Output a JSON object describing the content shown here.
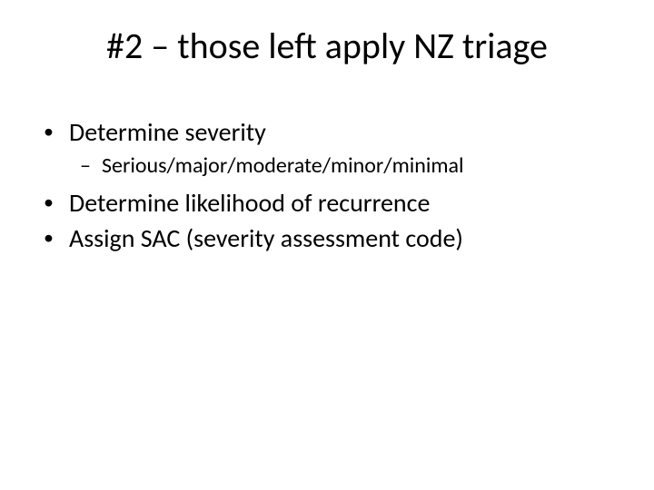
{
  "slide": {
    "title": "#2 – those left apply NZ triage",
    "bullets": [
      {
        "level": 1,
        "text": "Determine severity"
      },
      {
        "level": 2,
        "text": "Serious/major/moderate/minor/minimal"
      },
      {
        "level": 1,
        "text": "Determine likelihood of recurrence"
      },
      {
        "level": 1,
        "text": "Assign SAC (severity assessment code)"
      }
    ]
  },
  "style": {
    "background_color": "#ffffff",
    "text_color": "#000000",
    "title_fontsize": 40,
    "l1_fontsize": 28,
    "l2_fontsize": 24,
    "l1_marker": "•",
    "l2_marker": "–",
    "font_family": "Calibri"
  }
}
